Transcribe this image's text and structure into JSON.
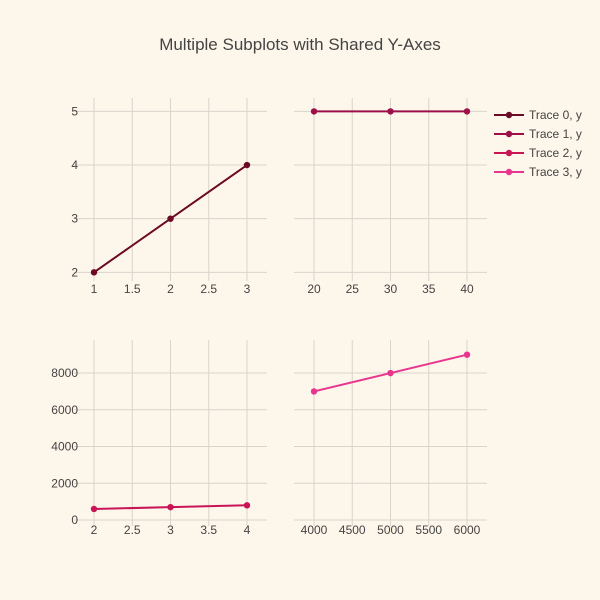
{
  "chart_data": {
    "type": "line",
    "title": "Multiple Subplots with Shared Y-Axes",
    "grid": true,
    "legend": {
      "placement": "top-right"
    },
    "subplots": [
      {
        "id": "top-left",
        "xlim": [
          1,
          3
        ],
        "ylim": [
          1.95,
          5.25
        ],
        "xticks": [
          1,
          1.5,
          2,
          2.5,
          3
        ],
        "xtick_labels": [
          "1",
          "1.5",
          "2",
          "2.5",
          "3"
        ],
        "yticks": [
          2,
          3,
          4,
          5
        ],
        "ytick_labels": [
          "2",
          "3",
          "4",
          "5"
        ],
        "show_y_labels": true,
        "series": [
          {
            "name": "Trace 0, y",
            "x": [
              1,
              2,
              3
            ],
            "y": [
              2,
              3,
              4
            ],
            "color": "#6b0a24"
          }
        ]
      },
      {
        "id": "top-right",
        "xlim": [
          20,
          40
        ],
        "ylim": [
          1.95,
          5.25
        ],
        "xticks": [
          20,
          25,
          30,
          35,
          40
        ],
        "xtick_labels": [
          "20",
          "25",
          "30",
          "35",
          "40"
        ],
        "yticks": [
          2,
          3,
          4,
          5
        ],
        "ytick_labels": [],
        "show_y_labels": false,
        "series": [
          {
            "name": "Trace 1, y",
            "x": [
              20,
              30,
              40
            ],
            "y": [
              5,
              5,
              5
            ],
            "color": "#9c0f47"
          }
        ]
      },
      {
        "id": "bottom-left",
        "xlim": [
          2,
          4
        ],
        "ylim": [
          0,
          9800
        ],
        "xticks": [
          2,
          2.5,
          3,
          3.5,
          4
        ],
        "xtick_labels": [
          "2",
          "2.5",
          "3",
          "3.5",
          "4"
        ],
        "yticks": [
          0,
          2000,
          4000,
          6000,
          8000
        ],
        "ytick_labels": [
          "0",
          "2000",
          "4000",
          "6000",
          "8000"
        ],
        "show_y_labels": true,
        "series": [
          {
            "name": "Trace 2, y",
            "x": [
              2,
              3,
              4
            ],
            "y": [
              600,
              700,
              800
            ],
            "color": "#c91456"
          }
        ]
      },
      {
        "id": "bottom-right",
        "xlim": [
          4000,
          6000
        ],
        "ylim": [
          0,
          9800
        ],
        "xticks": [
          4000,
          4500,
          5000,
          5500,
          6000
        ],
        "xtick_labels": [
          "4000",
          "4500",
          "5000",
          "5500",
          "6000"
        ],
        "yticks": [
          0,
          2000,
          4000,
          6000,
          8000
        ],
        "ytick_labels": [],
        "show_y_labels": false,
        "series": [
          {
            "name": "Trace 3, y",
            "x": [
              4000,
              5000,
              6000
            ],
            "y": [
              7000,
              8000,
              9000
            ],
            "color": "#e8368f"
          }
        ]
      }
    ]
  }
}
